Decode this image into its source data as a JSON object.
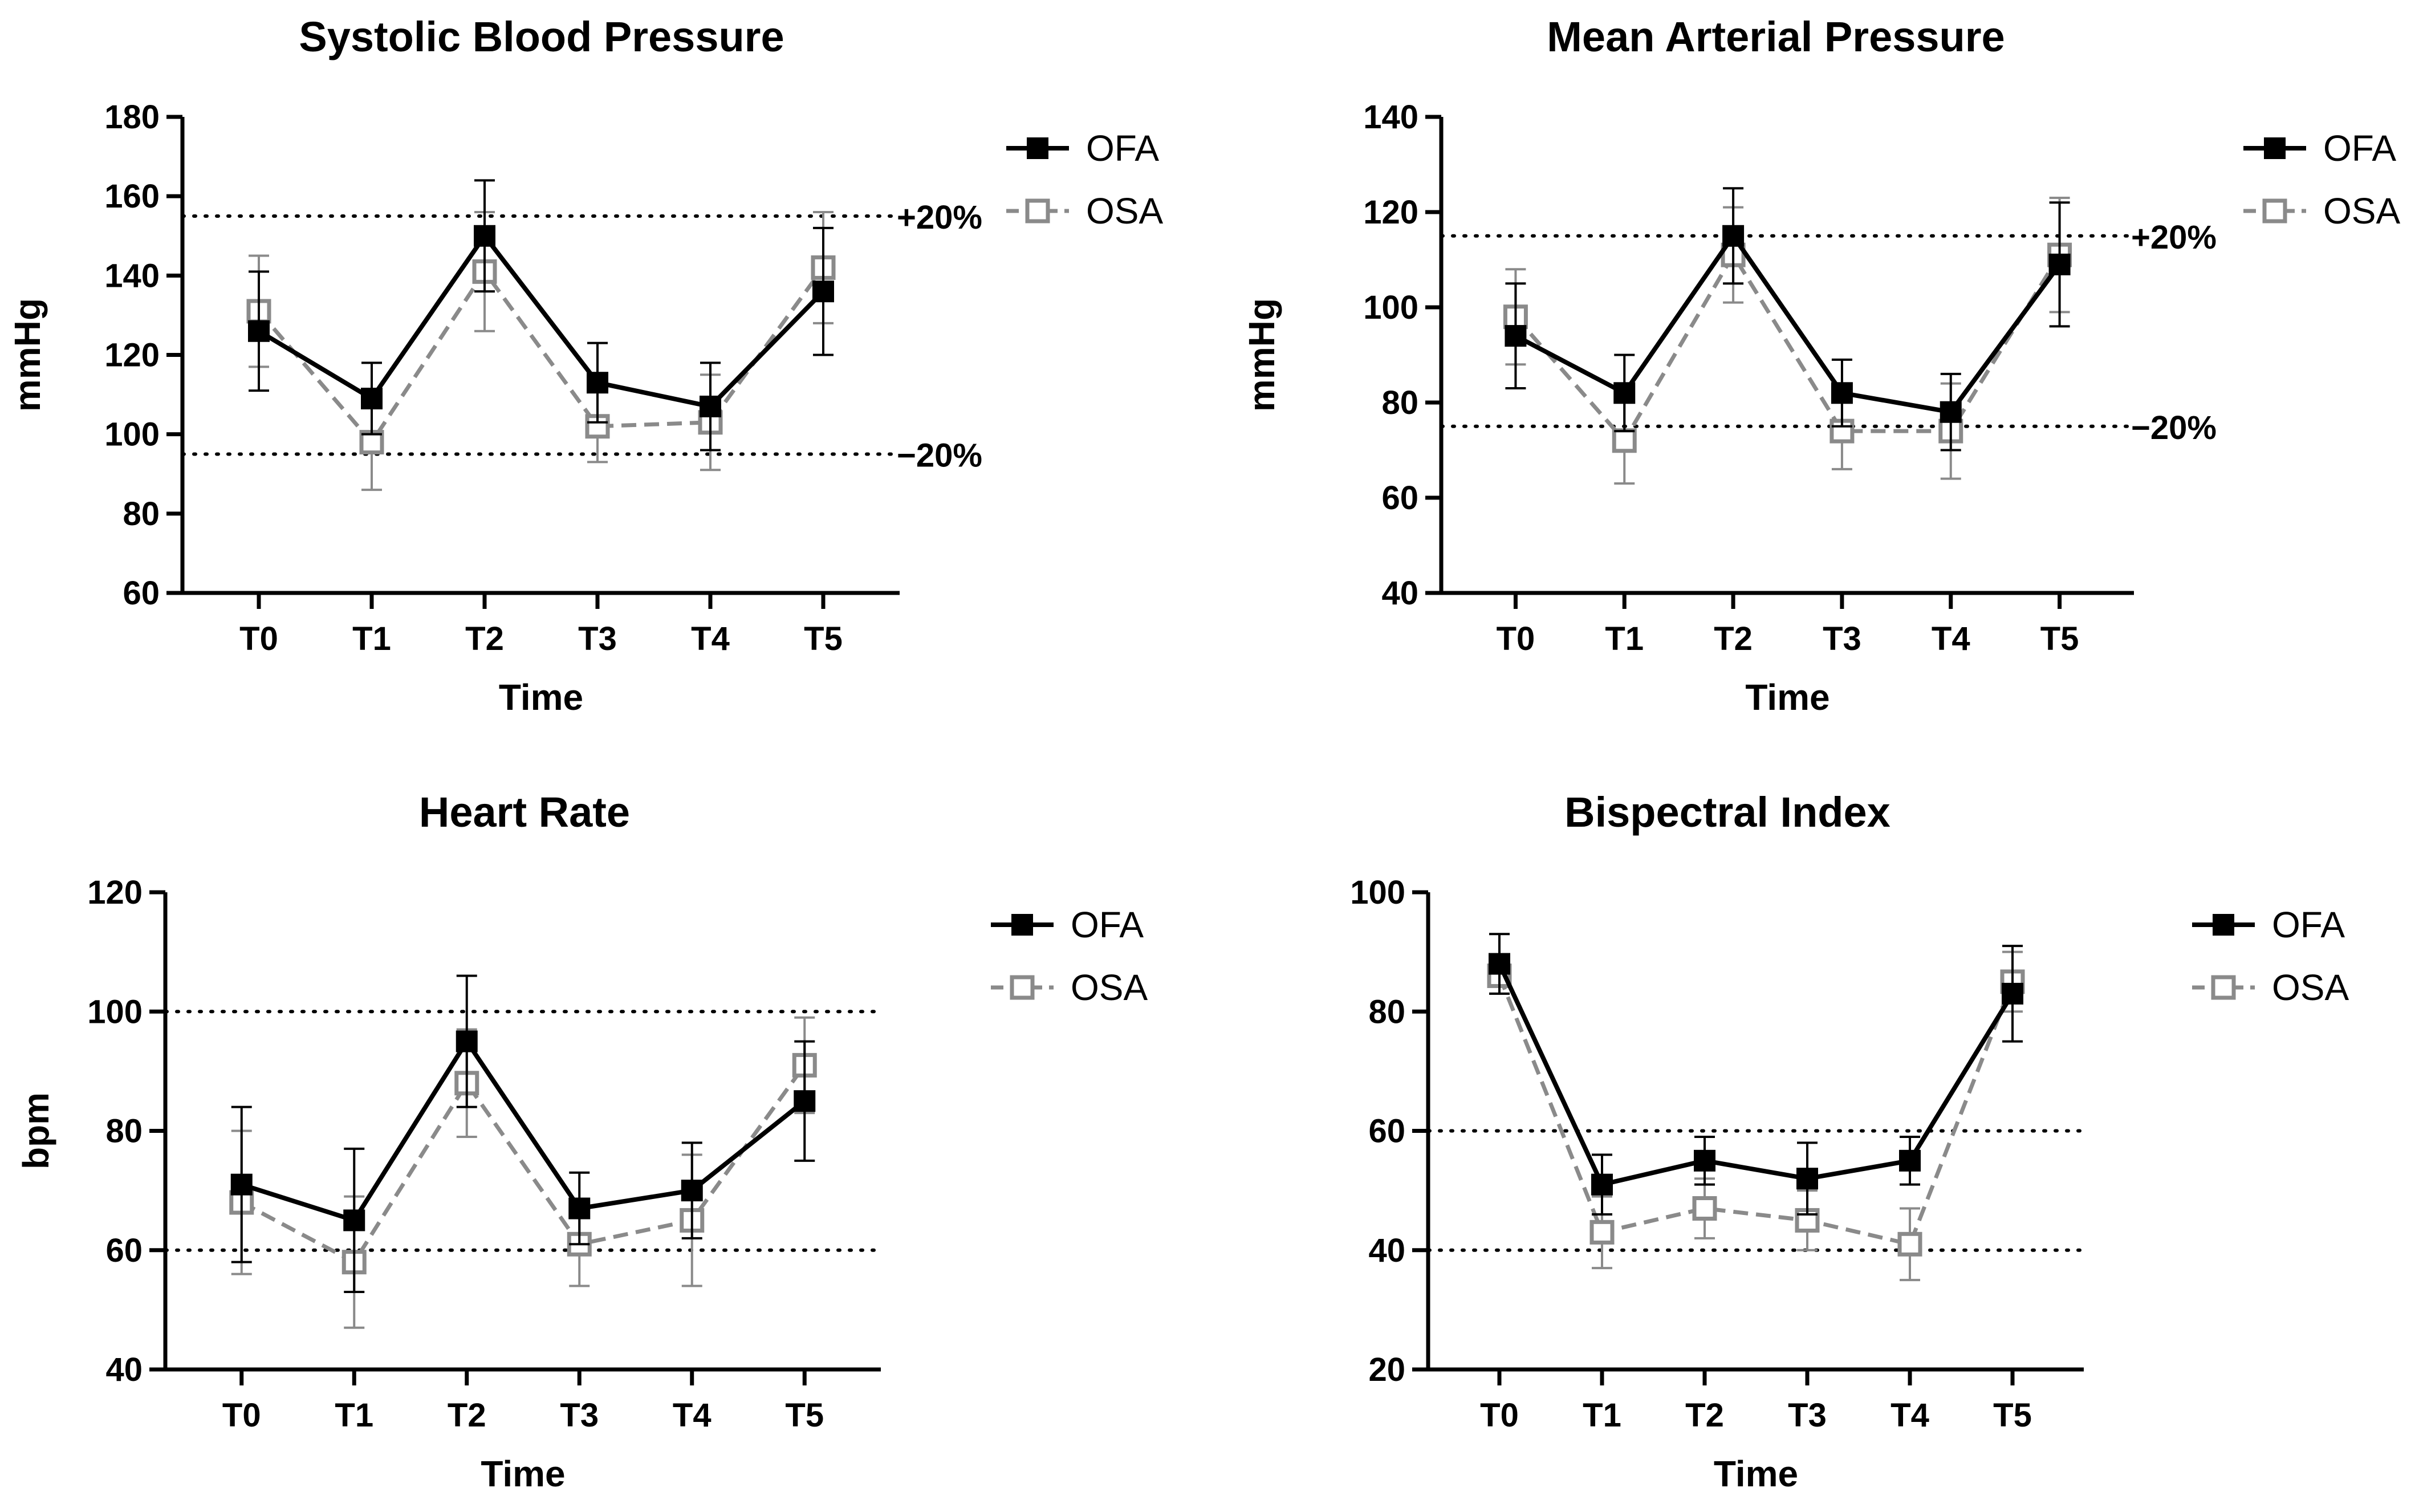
{
  "colors": {
    "ofa": "#000000",
    "osa": "#8a8a8a",
    "background": "#ffffff"
  },
  "chart_data": [
    {
      "type": "line",
      "title": "Systolic Blood Pressure",
      "xlabel": "Time",
      "ylabel": "mmHg",
      "ylim": [
        60,
        180
      ],
      "yticks": [
        "60",
        "80",
        "100",
        "120",
        "140",
        "160",
        "180"
      ],
      "categories": [
        "T0",
        "T1",
        "T2",
        "T3",
        "T4",
        "T5"
      ],
      "legend_position": "top-right",
      "reference_lines": [
        {
          "value": 155,
          "label": "+20%"
        },
        {
          "value": 95,
          "label": "−20%"
        }
      ],
      "series": [
        {
          "name": "OFA",
          "style": "solid-filled",
          "values": [
            126,
            109,
            150,
            113,
            107,
            136
          ],
          "err": [
            15,
            9,
            14,
            10,
            11,
            16
          ]
        },
        {
          "name": "OSA",
          "style": "dashed-open",
          "values": [
            131,
            98,
            141,
            102,
            103,
            142
          ],
          "err": [
            14,
            12,
            15,
            9,
            12,
            14
          ]
        }
      ]
    },
    {
      "type": "line",
      "title": "Mean Arterial Pressure",
      "xlabel": "Time",
      "ylabel": "mmHg",
      "ylim": [
        40,
        140
      ],
      "yticks": [
        "40",
        "60",
        "80",
        "100",
        "120",
        "140"
      ],
      "categories": [
        "T0",
        "T1",
        "T2",
        "T3",
        "T4",
        "T5"
      ],
      "legend_position": "top-right",
      "reference_lines": [
        {
          "value": 115,
          "label": "+20%"
        },
        {
          "value": 75,
          "label": "−20%"
        }
      ],
      "series": [
        {
          "name": "OFA",
          "style": "solid-filled",
          "values": [
            94,
            82,
            115,
            82,
            78,
            109
          ],
          "err": [
            11,
            8,
            10,
            7,
            8,
            13
          ]
        },
        {
          "name": "OSA",
          "style": "dashed-open",
          "values": [
            98,
            72,
            111,
            74,
            74,
            111
          ],
          "err": [
            10,
            9,
            10,
            8,
            10,
            12
          ]
        }
      ]
    },
    {
      "type": "line",
      "title": "Heart Rate",
      "xlabel": "Time",
      "ylabel": "bpm",
      "ylim": [
        40,
        120
      ],
      "yticks": [
        "40",
        "60",
        "80",
        "100",
        "120"
      ],
      "categories": [
        "T0",
        "T1",
        "T2",
        "T3",
        "T4",
        "T5"
      ],
      "legend_position": "top-right",
      "reference_lines": [
        {
          "value": 100,
          "label": ""
        },
        {
          "value": 60,
          "label": ""
        }
      ],
      "series": [
        {
          "name": "OFA",
          "style": "solid-filled",
          "values": [
            71,
            65,
            95,
            67,
            70,
            85
          ],
          "err": [
            13,
            12,
            11,
            6,
            8,
            10
          ]
        },
        {
          "name": "OSA",
          "style": "dashed-open",
          "values": [
            68,
            58,
            88,
            61,
            65,
            91
          ],
          "err": [
            12,
            11,
            9,
            7,
            11,
            8
          ]
        }
      ]
    },
    {
      "type": "line",
      "title": "Bispectral Index",
      "xlabel": "Time",
      "ylabel": "",
      "ylim": [
        20,
        100
      ],
      "yticks": [
        "20",
        "40",
        "60",
        "80",
        "100"
      ],
      "categories": [
        "T0",
        "T1",
        "T2",
        "T3",
        "T4",
        "T5"
      ],
      "legend_position": "top-right",
      "reference_lines": [
        {
          "value": 60,
          "label": ""
        },
        {
          "value": 40,
          "label": ""
        }
      ],
      "series": [
        {
          "name": "OFA",
          "style": "solid-filled",
          "values": [
            88,
            51,
            55,
            52,
            55,
            83
          ],
          "err": [
            5,
            5,
            4,
            6,
            4,
            8
          ]
        },
        {
          "name": "OSA",
          "style": "dashed-open",
          "values": [
            86,
            43,
            47,
            45,
            41,
            85
          ],
          "err": [
            3,
            6,
            5,
            5,
            6,
            5
          ]
        }
      ]
    }
  ]
}
